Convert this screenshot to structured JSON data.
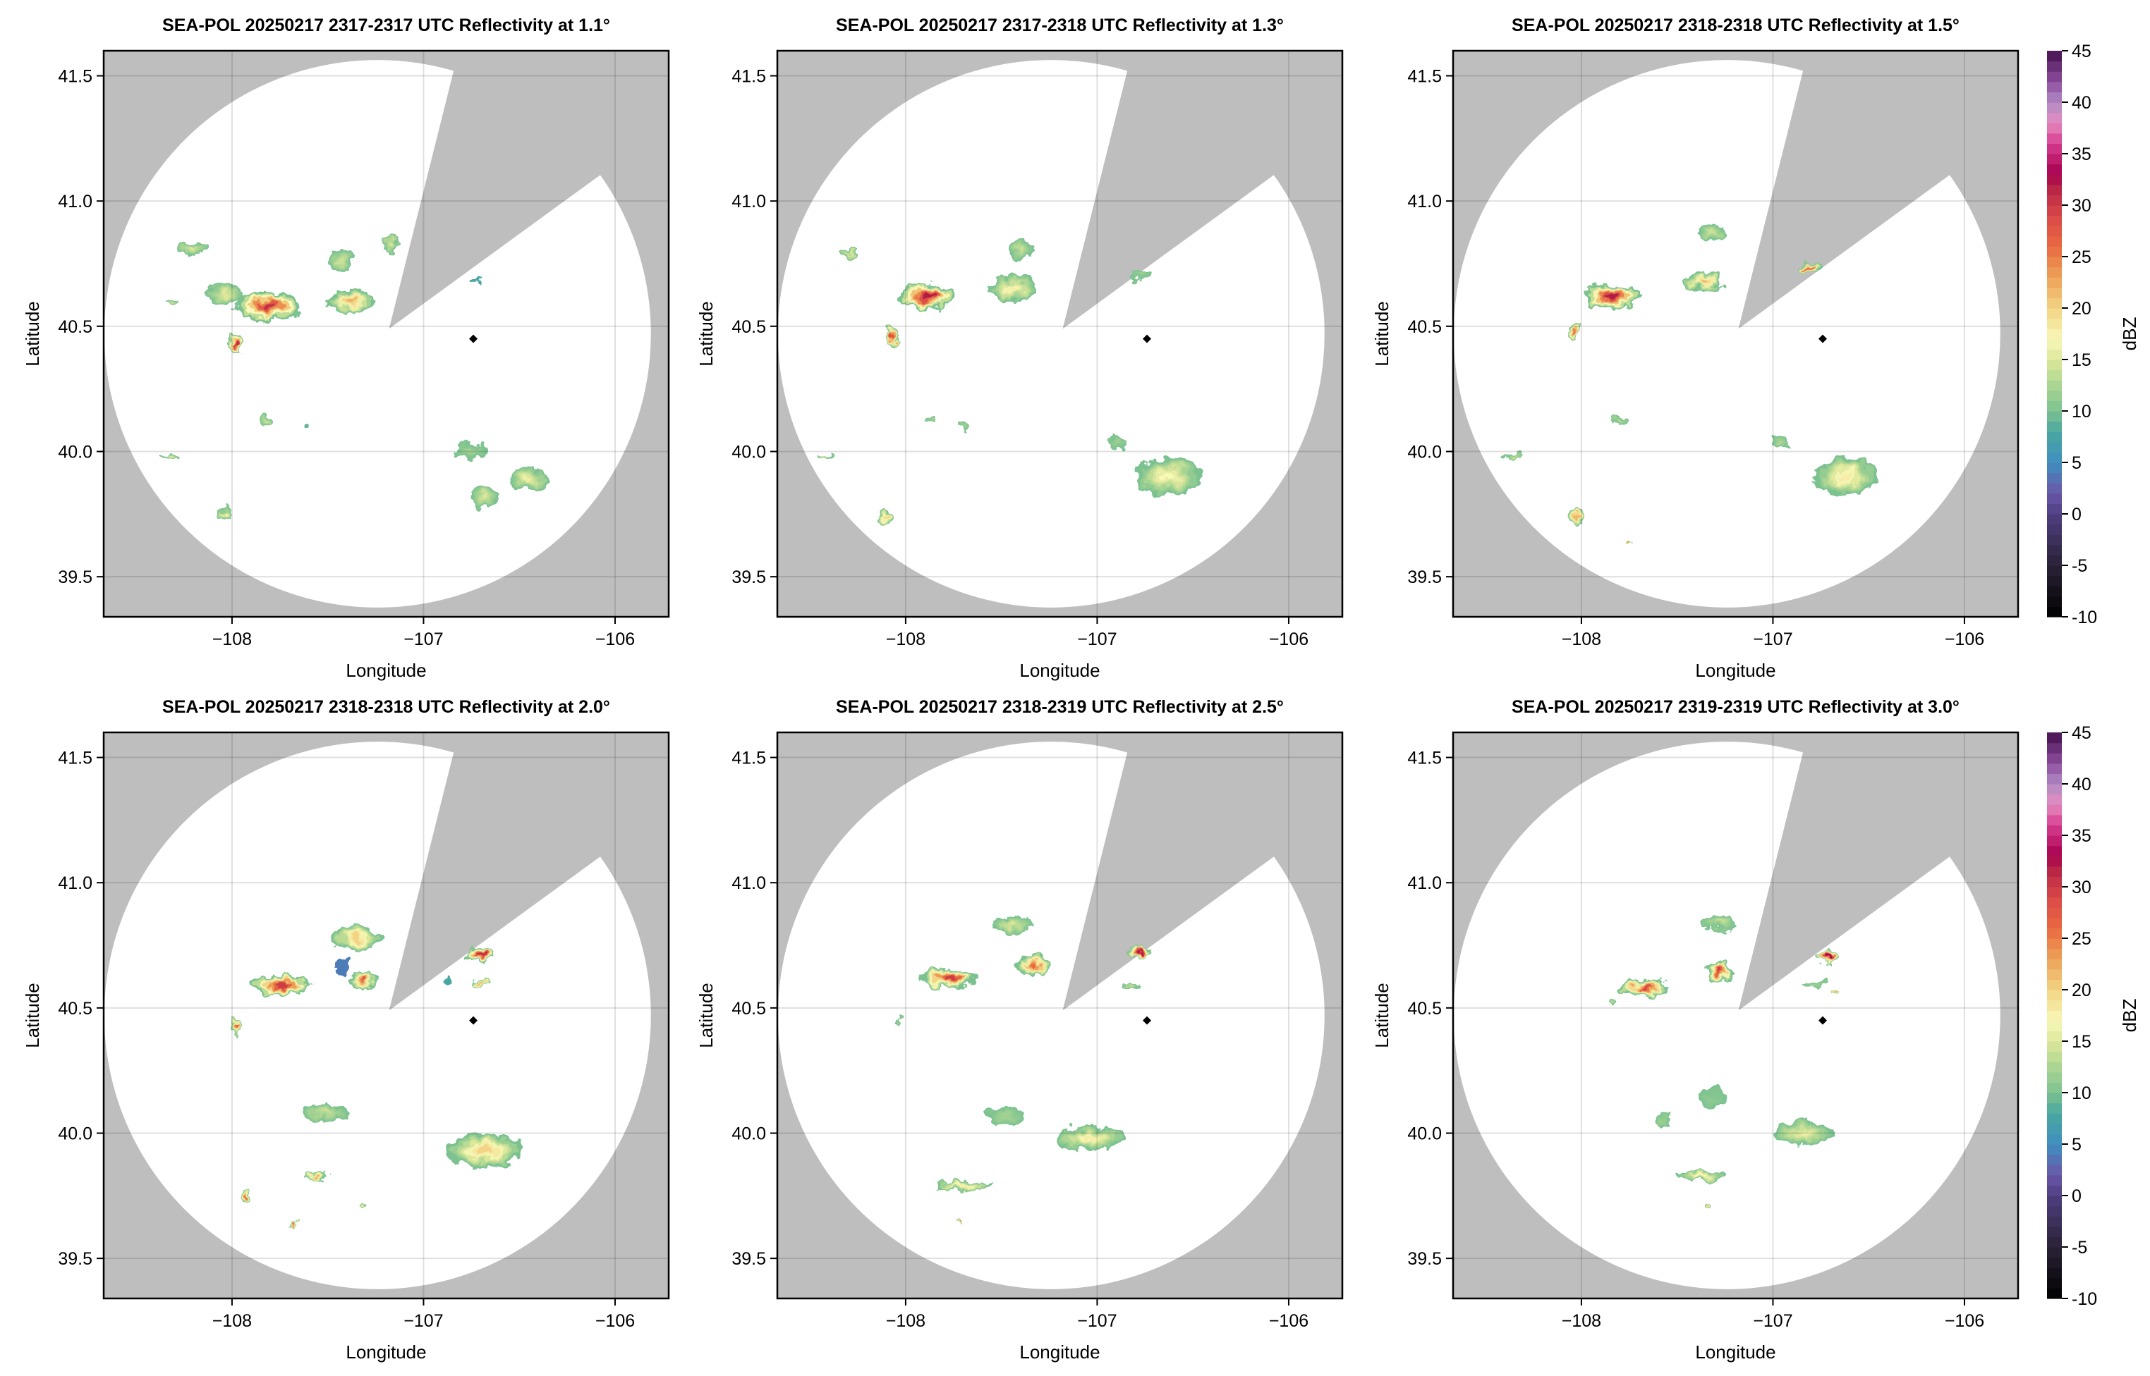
{
  "chart_data": {
    "type": "heatmap",
    "colorbar": {
      "label": "dBZ",
      "range": [
        -10,
        45
      ],
      "ticks": [
        "-10",
        "-5",
        "0",
        "5",
        "10",
        "15",
        "20",
        "25",
        "30",
        "35",
        "40",
        "45"
      ],
      "colormap_stops": [
        [
          -10,
          "#000000"
        ],
        [
          -5,
          "#2a2136"
        ],
        [
          0,
          "#4f3f80"
        ],
        [
          2,
          "#6a56a8"
        ],
        [
          5,
          "#3f8fc0"
        ],
        [
          8,
          "#4aa7a0"
        ],
        [
          10,
          "#7cc290"
        ],
        [
          13,
          "#b3d993"
        ],
        [
          15,
          "#dde79a"
        ],
        [
          17,
          "#f8f8b8"
        ],
        [
          20,
          "#f2d484"
        ],
        [
          23,
          "#eea25a"
        ],
        [
          26,
          "#e86a40"
        ],
        [
          29,
          "#d94848"
        ],
        [
          32,
          "#b21f45"
        ],
        [
          33,
          "#a7004e"
        ],
        [
          36,
          "#d63c8f"
        ],
        [
          38,
          "#e58cc0"
        ],
        [
          40,
          "#b18ac2"
        ],
        [
          42,
          "#8e4ea0"
        ],
        [
          45,
          "#43104d"
        ]
      ]
    },
    "xlabel": "Longitude",
    "ylabel": "Latitude",
    "xlim": [
      -108.67,
      -105.72
    ],
    "ylim": [
      39.34,
      41.6
    ],
    "xticks": [
      "−108",
      "−107",
      "−106"
    ],
    "xtick_values": [
      -108,
      -107,
      -106
    ],
    "yticks": [
      "39.5",
      "40.0",
      "40.5",
      "41.0",
      "41.5"
    ],
    "ytick_values": [
      39.5,
      40.0,
      40.5,
      41.0,
      41.5
    ],
    "grid": true,
    "colors": {
      "no_coverage": "#bebebe",
      "coverage": "#ffffff",
      "grid": "#d9d9d9"
    },
    "radar_coverage": {
      "center": [
        -107.24,
        40.47
      ],
      "range_deg_lon": 1.427,
      "range_deg_lat": 1.093,
      "blocked_sector": [
        [
          -107.18,
          40.49
        ],
        [
          -106.784,
          41.7
        ],
        [
          -105.6,
          41.7
        ],
        [
          -105.6,
          41.37
        ]
      ]
    },
    "marker": {
      "lon": -106.74,
      "lat": 40.45,
      "color": "#000000"
    },
    "panels": [
      {
        "title": "SEA-POL 20250217 2317-2317 UTC Reflectivity at 1.1°",
        "echoes": [
          {
            "lon": -108.04,
            "lat": 40.63,
            "w": 0.2,
            "h": 0.08,
            "dbz": 15
          },
          {
            "lon": -107.81,
            "lat": 40.58,
            "w": 0.35,
            "h": 0.12,
            "dbz": 31
          },
          {
            "lon": -107.97,
            "lat": 40.43,
            "w": 0.06,
            "h": 0.1,
            "dbz": 31
          },
          {
            "lon": -107.38,
            "lat": 40.6,
            "w": 0.25,
            "h": 0.09,
            "dbz": 22
          },
          {
            "lon": -107.43,
            "lat": 40.76,
            "w": 0.12,
            "h": 0.1,
            "dbz": 14
          },
          {
            "lon": -107.17,
            "lat": 40.83,
            "w": 0.08,
            "h": 0.06,
            "dbz": 15
          },
          {
            "lon": -108.21,
            "lat": 40.81,
            "w": 0.15,
            "h": 0.05,
            "dbz": 15
          },
          {
            "lon": -108.32,
            "lat": 40.6,
            "w": 0.1,
            "h": 0.02,
            "dbz": 14
          },
          {
            "lon": -107.81,
            "lat": 40.12,
            "w": 0.06,
            "h": 0.05,
            "dbz": 14
          },
          {
            "lon": -107.62,
            "lat": 40.1,
            "w": 0.04,
            "h": 0.02,
            "dbz": 9
          },
          {
            "lon": -108.32,
            "lat": 39.98,
            "w": 0.1,
            "h": 0.02,
            "dbz": 16
          },
          {
            "lon": -106.75,
            "lat": 40.0,
            "w": 0.2,
            "h": 0.06,
            "dbz": 12
          },
          {
            "lon": -106.45,
            "lat": 39.89,
            "w": 0.2,
            "h": 0.1,
            "dbz": 16
          },
          {
            "lon": -106.68,
            "lat": 39.82,
            "w": 0.15,
            "h": 0.08,
            "dbz": 15
          },
          {
            "lon": -108.04,
            "lat": 39.75,
            "w": 0.08,
            "h": 0.06,
            "dbz": 17
          },
          {
            "lon": -106.73,
            "lat": 40.68,
            "w": 0.06,
            "h": 0.02,
            "dbz": 8
          }
        ]
      },
      {
        "title": "SEA-POL 20250217 2317-2318 UTC Reflectivity at 1.3°",
        "echoes": [
          {
            "lon": -107.88,
            "lat": 40.62,
            "w": 0.3,
            "h": 0.1,
            "dbz": 32
          },
          {
            "lon": -107.44,
            "lat": 40.65,
            "w": 0.25,
            "h": 0.1,
            "dbz": 18
          },
          {
            "lon": -107.4,
            "lat": 40.81,
            "w": 0.15,
            "h": 0.08,
            "dbz": 14
          },
          {
            "lon": -108.07,
            "lat": 40.46,
            "w": 0.05,
            "h": 0.08,
            "dbz": 28
          },
          {
            "lon": -106.78,
            "lat": 40.7,
            "w": 0.12,
            "h": 0.04,
            "dbz": 12
          },
          {
            "lon": -106.63,
            "lat": 39.9,
            "w": 0.35,
            "h": 0.15,
            "dbz": 17
          },
          {
            "lon": -106.89,
            "lat": 40.04,
            "w": 0.1,
            "h": 0.05,
            "dbz": 12
          },
          {
            "lon": -107.7,
            "lat": 40.1,
            "w": 0.06,
            "h": 0.05,
            "dbz": 12
          },
          {
            "lon": -107.86,
            "lat": 40.13,
            "w": 0.04,
            "h": 0.03,
            "dbz": 13
          },
          {
            "lon": -108.1,
            "lat": 39.74,
            "w": 0.08,
            "h": 0.05,
            "dbz": 20
          },
          {
            "lon": -108.43,
            "lat": 39.98,
            "w": 0.1,
            "h": 0.02,
            "dbz": 16
          },
          {
            "lon": -108.29,
            "lat": 40.79,
            "w": 0.08,
            "h": 0.03,
            "dbz": 15
          }
        ]
      },
      {
        "title": "SEA-POL 20250217 2318-2318 UTC Reflectivity at 1.5°",
        "echoes": [
          {
            "lon": -107.84,
            "lat": 40.62,
            "w": 0.3,
            "h": 0.1,
            "dbz": 32
          },
          {
            "lon": -107.36,
            "lat": 40.68,
            "w": 0.2,
            "h": 0.08,
            "dbz": 22
          },
          {
            "lon": -107.32,
            "lat": 40.87,
            "w": 0.15,
            "h": 0.07,
            "dbz": 14
          },
          {
            "lon": -106.81,
            "lat": 40.73,
            "w": 0.12,
            "h": 0.04,
            "dbz": 26
          },
          {
            "lon": -108.03,
            "lat": 40.48,
            "w": 0.06,
            "h": 0.07,
            "dbz": 27
          },
          {
            "lon": -106.62,
            "lat": 39.9,
            "w": 0.35,
            "h": 0.15,
            "dbz": 18
          },
          {
            "lon": -106.96,
            "lat": 40.04,
            "w": 0.1,
            "h": 0.05,
            "dbz": 13
          },
          {
            "lon": -107.8,
            "lat": 40.12,
            "w": 0.08,
            "h": 0.04,
            "dbz": 13
          },
          {
            "lon": -108.03,
            "lat": 39.74,
            "w": 0.08,
            "h": 0.05,
            "dbz": 22
          },
          {
            "lon": -107.74,
            "lat": 39.63,
            "w": 0.02,
            "h": 0.02,
            "dbz": 26
          },
          {
            "lon": -108.36,
            "lat": 39.98,
            "w": 0.1,
            "h": 0.02,
            "dbz": 14
          }
        ]
      },
      {
        "title": "SEA-POL 20250217 2318-2318 UTC Reflectivity at 2.0°",
        "echoes": [
          {
            "lon": -107.74,
            "lat": 40.59,
            "w": 0.3,
            "h": 0.08,
            "dbz": 30
          },
          {
            "lon": -107.35,
            "lat": 40.78,
            "w": 0.25,
            "h": 0.1,
            "dbz": 20
          },
          {
            "lon": -107.43,
            "lat": 40.66,
            "w": 0.08,
            "h": 0.06,
            "dbz": 4
          },
          {
            "lon": -107.31,
            "lat": 40.61,
            "w": 0.15,
            "h": 0.08,
            "dbz": 28
          },
          {
            "lon": -107.98,
            "lat": 40.43,
            "w": 0.04,
            "h": 0.07,
            "dbz": 27
          },
          {
            "lon": -106.7,
            "lat": 40.71,
            "w": 0.15,
            "h": 0.06,
            "dbz": 31
          },
          {
            "lon": -106.7,
            "lat": 40.6,
            "w": 0.08,
            "h": 0.03,
            "dbz": 22
          },
          {
            "lon": -106.87,
            "lat": 40.61,
            "w": 0.04,
            "h": 0.03,
            "dbz": 8
          },
          {
            "lon": -106.68,
            "lat": 39.93,
            "w": 0.4,
            "h": 0.14,
            "dbz": 20
          },
          {
            "lon": -107.51,
            "lat": 40.08,
            "w": 0.25,
            "h": 0.07,
            "dbz": 14
          },
          {
            "lon": -107.56,
            "lat": 39.83,
            "w": 0.12,
            "h": 0.04,
            "dbz": 22
          },
          {
            "lon": -107.93,
            "lat": 39.74,
            "w": 0.06,
            "h": 0.04,
            "dbz": 26
          },
          {
            "lon": -107.68,
            "lat": 39.64,
            "w": 0.03,
            "h": 0.02,
            "dbz": 30
          },
          {
            "lon": -107.33,
            "lat": 39.72,
            "w": 0.04,
            "h": 0.03,
            "dbz": 20
          }
        ]
      },
      {
        "title": "SEA-POL 20250217 2318-2319 UTC Reflectivity at 2.5°",
        "echoes": [
          {
            "lon": -107.77,
            "lat": 40.62,
            "w": 0.3,
            "h": 0.08,
            "dbz": 30
          },
          {
            "lon": -107.44,
            "lat": 40.83,
            "w": 0.22,
            "h": 0.07,
            "dbz": 15
          },
          {
            "lon": -107.33,
            "lat": 40.67,
            "w": 0.2,
            "h": 0.08,
            "dbz": 26
          },
          {
            "lon": -106.78,
            "lat": 40.73,
            "w": 0.12,
            "h": 0.04,
            "dbz": 32
          },
          {
            "lon": -106.82,
            "lat": 40.59,
            "w": 0.1,
            "h": 0.03,
            "dbz": 14
          },
          {
            "lon": -108.03,
            "lat": 40.45,
            "w": 0.03,
            "h": 0.04,
            "dbz": 12
          },
          {
            "lon": -107.04,
            "lat": 39.98,
            "w": 0.35,
            "h": 0.1,
            "dbz": 18
          },
          {
            "lon": -107.48,
            "lat": 40.07,
            "w": 0.2,
            "h": 0.07,
            "dbz": 12
          },
          {
            "lon": -107.7,
            "lat": 39.79,
            "w": 0.3,
            "h": 0.04,
            "dbz": 18
          },
          {
            "lon": -107.73,
            "lat": 39.64,
            "w": 0.02,
            "h": 0.02,
            "dbz": 28
          }
        ]
      },
      {
        "title": "SEA-POL 20250217 2319-2319 UTC Reflectivity at 3.0°",
        "echoes": [
          {
            "lon": -107.67,
            "lat": 40.58,
            "w": 0.25,
            "h": 0.07,
            "dbz": 29
          },
          {
            "lon": -107.28,
            "lat": 40.84,
            "w": 0.2,
            "h": 0.06,
            "dbz": 14
          },
          {
            "lon": -107.28,
            "lat": 40.64,
            "w": 0.15,
            "h": 0.08,
            "dbz": 30
          },
          {
            "lon": -106.72,
            "lat": 40.7,
            "w": 0.12,
            "h": 0.04,
            "dbz": 33
          },
          {
            "lon": -106.78,
            "lat": 40.6,
            "w": 0.1,
            "h": 0.03,
            "dbz": 12
          },
          {
            "lon": -106.68,
            "lat": 40.57,
            "w": 0.03,
            "h": 0.02,
            "dbz": 23
          },
          {
            "lon": -107.84,
            "lat": 40.52,
            "w": 0.04,
            "h": 0.03,
            "dbz": 13
          },
          {
            "lon": -106.84,
            "lat": 40.0,
            "w": 0.3,
            "h": 0.1,
            "dbz": 16
          },
          {
            "lon": -107.32,
            "lat": 40.14,
            "w": 0.15,
            "h": 0.08,
            "dbz": 11
          },
          {
            "lon": -107.57,
            "lat": 40.05,
            "w": 0.1,
            "h": 0.05,
            "dbz": 12
          },
          {
            "lon": -107.38,
            "lat": 39.83,
            "w": 0.25,
            "h": 0.04,
            "dbz": 17
          },
          {
            "lon": -107.34,
            "lat": 39.72,
            "w": 0.04,
            "h": 0.03,
            "dbz": 23
          }
        ]
      }
    ]
  }
}
